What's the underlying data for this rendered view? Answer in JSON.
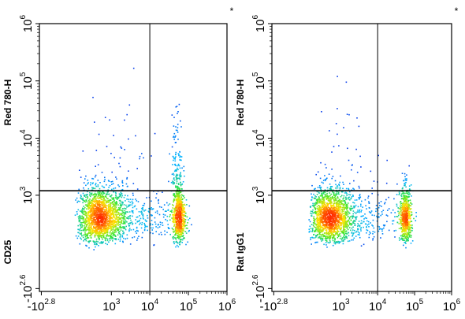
{
  "chart_data": [
    {
      "type": "scatter",
      "ylabel_top": "Red 780-H",
      "ylabel_bottom": "CD25",
      "corner_mark": "*",
      "x_ticks": [
        {
          "base": "-10",
          "exp": "2.8",
          "value": -631
        },
        {
          "base": "10",
          "exp": "3",
          "value": 1000
        },
        {
          "base": "10",
          "exp": "4",
          "value": 10000
        },
        {
          "base": "10",
          "exp": "5",
          "value": 100000
        },
        {
          "base": "10",
          "exp": "6",
          "value": 1000000
        }
      ],
      "y_ticks": [
        {
          "base": "-10",
          "exp": "2.6",
          "value": -398
        },
        {
          "base": "10",
          "exp": "3",
          "value": 1000
        },
        {
          "base": "10",
          "exp": "4",
          "value": 10000
        },
        {
          "base": "10",
          "exp": "5",
          "value": 100000
        },
        {
          "base": "10",
          "exp": "6",
          "value": 1000000
        }
      ],
      "gates": {
        "x": 10000,
        "y": 1200
      },
      "populations": [
        {
          "cx": 500,
          "cy": 400,
          "sx_decades": 0.35,
          "sy_decades": 0.28,
          "n": 1700
        },
        {
          "cx": 55000,
          "cy": 420,
          "sx_decades": 0.08,
          "sy_decades": 0.3,
          "n": 650
        },
        {
          "cx": 50000,
          "cy": 3000,
          "sx_decades": 0.07,
          "sy_decades": 0.5,
          "n": 140
        },
        {
          "cx": 6000,
          "cy": 400,
          "sx_decades": 0.5,
          "sy_decades": 0.25,
          "n": 250
        },
        {
          "cx": 1200,
          "cy": 4000,
          "sx_decades": 0.6,
          "sy_decades": 0.6,
          "n": 60
        }
      ]
    },
    {
      "type": "scatter",
      "ylabel_top": "Red 780-H",
      "ylabel_bottom": "Rat IgG1",
      "corner_mark": "*",
      "x_ticks": [
        {
          "base": "-10",
          "exp": "2.8",
          "value": -631
        },
        {
          "base": "10",
          "exp": "3",
          "value": 1000
        },
        {
          "base": "10",
          "exp": "4",
          "value": 10000
        },
        {
          "base": "10",
          "exp": "5",
          "value": 100000
        },
        {
          "base": "10",
          "exp": "6",
          "value": 1000000
        }
      ],
      "y_ticks": [
        {
          "base": "-10",
          "exp": "2.6",
          "value": -398
        },
        {
          "base": "10",
          "exp": "3",
          "value": 1000
        },
        {
          "base": "10",
          "exp": "4",
          "value": 10000
        },
        {
          "base": "10",
          "exp": "5",
          "value": 100000
        },
        {
          "base": "10",
          "exp": "6",
          "value": 1000000
        }
      ],
      "gates": {
        "x": 10000,
        "y": 1200
      },
      "populations": [
        {
          "cx": 500,
          "cy": 400,
          "sx_decades": 0.33,
          "sy_decades": 0.27,
          "n": 1600
        },
        {
          "cx": 55000,
          "cy": 400,
          "sx_decades": 0.08,
          "sy_decades": 0.28,
          "n": 620
        },
        {
          "cx": 6000,
          "cy": 400,
          "sx_decades": 0.5,
          "sy_decades": 0.25,
          "n": 200
        },
        {
          "cx": 1500,
          "cy": 3500,
          "sx_decades": 0.6,
          "sy_decades": 0.6,
          "n": 45
        }
      ]
    }
  ]
}
